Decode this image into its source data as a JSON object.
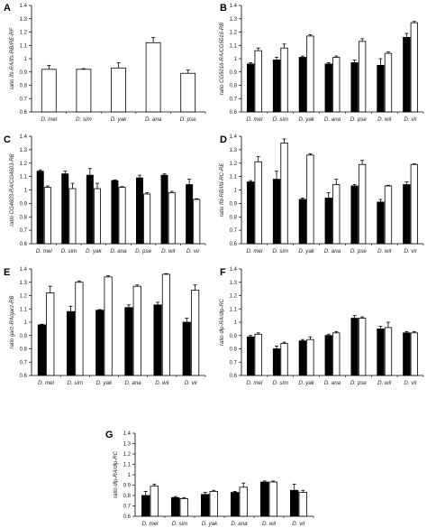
{
  "chart_data": [
    {
      "type": "bar",
      "panel": "A",
      "ylabel": "ratio Ifs-RA/Ifs-RB/RE-RF",
      "ylim": [
        0.6,
        1.4
      ],
      "yticks": [
        "0.6",
        "0.7",
        "0.8",
        "0.9",
        "1",
        "1.1",
        "1.2",
        "1.3",
        "1.4"
      ],
      "categories": [
        "D. mel",
        "D. sim",
        "D. yak",
        "D. ana",
        "D. pse"
      ],
      "series": [
        {
          "fill": "#ffffff",
          "values": [
            0.92,
            0.92,
            0.93,
            1.12,
            0.89
          ],
          "errors": [
            0.03,
            0.005,
            0.04,
            0.04,
            0.025
          ]
        }
      ]
    },
    {
      "type": "bar",
      "panel": "B",
      "ylabel": "ratio CG5016-RA/CG5016-RB",
      "ylim": [
        0.6,
        1.4
      ],
      "yticks": [
        "0.6",
        "0.7",
        "0.8",
        "0.9",
        "1",
        "1.1",
        "1.2",
        "1.3",
        "1.4"
      ],
      "categories": [
        "D. mel",
        "D. sim",
        "D. yak",
        "D. ana",
        "D. pse",
        "D. wil",
        "D. vir"
      ],
      "series": [
        {
          "fill": "#000000",
          "values": [
            0.96,
            0.99,
            1.01,
            0.96,
            0.97,
            0.95,
            1.16
          ],
          "errors": [
            0.01,
            0.02,
            0.01,
            0.01,
            0.02,
            0.05,
            0.03
          ]
        },
        {
          "fill": "#ffffff",
          "values": [
            1.06,
            1.08,
            1.17,
            1.01,
            1.13,
            1.04,
            1.27
          ],
          "errors": [
            0.02,
            0.03,
            0.01,
            0.01,
            0.02,
            0.01,
            0.01
          ]
        }
      ]
    },
    {
      "type": "bar",
      "panel": "C",
      "ylabel": "ratio CG4603-RA/CG4603-RB",
      "ylim": [
        0.6,
        1.4
      ],
      "yticks": [
        "0.6",
        "0.7",
        "0.8",
        "0.9",
        "1",
        "1.1",
        "1.2",
        "1.3",
        "1.4"
      ],
      "categories": [
        "D. mel",
        "D. sim",
        "D. yak",
        "D. ana",
        "D. pse",
        "D. wil",
        "D. vir"
      ],
      "series": [
        {
          "fill": "#000000",
          "values": [
            1.14,
            1.12,
            1.11,
            1.07,
            1.09,
            1.11,
            1.04
          ],
          "errors": [
            0.01,
            0.02,
            0.05,
            0.005,
            0.02,
            0.01,
            0.04
          ]
        },
        {
          "fill": "#ffffff",
          "values": [
            1.02,
            1.01,
            1.01,
            1.02,
            0.97,
            0.98,
            0.93
          ],
          "errors": [
            0.01,
            0.04,
            0.04,
            0.005,
            0.01,
            0.01,
            0.005
          ]
        }
      ]
    },
    {
      "type": "bar",
      "panel": "D",
      "ylabel": "ratio Ifd-RB/Ifd-RC-RE",
      "ylim": [
        0.6,
        1.4
      ],
      "yticks": [
        "0.6",
        "0.7",
        "0.8",
        "0.9",
        "1",
        "1.1",
        "1.2",
        "1.3",
        "1.4"
      ],
      "categories": [
        "D. mel",
        "D. sim",
        "D. yak",
        "D. ana",
        "D. pse",
        "D. wil",
        "D. vir"
      ],
      "series": [
        {
          "fill": "#000000",
          "values": [
            1.06,
            1.08,
            0.93,
            0.94,
            1.03,
            0.91,
            1.04
          ],
          "errors": [
            0.01,
            0.06,
            0.01,
            0.04,
            0.01,
            0.02,
            0.02
          ]
        },
        {
          "fill": "#ffffff",
          "values": [
            1.21,
            1.35,
            1.26,
            1.04,
            1.19,
            1.03,
            1.19
          ],
          "errors": [
            0.04,
            0.03,
            0.01,
            0.04,
            0.03,
            0.005,
            0.005
          ]
        }
      ]
    },
    {
      "type": "bar",
      "panel": "E",
      "ylabel": "ratio garz-RA/garz-RB",
      "ylim": [
        0.6,
        1.4
      ],
      "yticks": [
        "0.6",
        "0.7",
        "0.8",
        "0.9",
        "1",
        "1.1",
        "1.2",
        "1.3",
        "1.4"
      ],
      "categories": [
        "D. mel",
        "D. sim",
        "D. yak",
        "D. ana",
        "D. wil",
        "D. vir"
      ],
      "series": [
        {
          "fill": "#000000",
          "values": [
            0.98,
            1.08,
            1.09,
            1.11,
            1.13,
            1.0
          ],
          "errors": [
            0.005,
            0.04,
            0.005,
            0.02,
            0.02,
            0.03
          ]
        },
        {
          "fill": "#ffffff",
          "values": [
            1.22,
            1.3,
            1.34,
            1.27,
            1.36,
            1.24
          ],
          "errors": [
            0.05,
            0.01,
            0.01,
            0.01,
            0.005,
            0.04
          ]
        }
      ]
    },
    {
      "type": "bar",
      "panel": "F",
      "ylabel": "ratio dlp-RA/dlp-RC",
      "ylim": [
        0.6,
        1.4
      ],
      "yticks": [
        "0.6",
        "0.7",
        "0.8",
        "0.9",
        "1",
        "1.1",
        "1.2",
        "1.3",
        "1.4"
      ],
      "categories": [
        "D. mel",
        "D. sim",
        "D. yak",
        "D. ana",
        "D. pse",
        "D. wil",
        "D. vir"
      ],
      "series": [
        {
          "fill": "#000000",
          "values": [
            0.89,
            0.8,
            0.86,
            0.9,
            1.03,
            0.95,
            0.92
          ],
          "errors": [
            0.01,
            0.02,
            0.01,
            0.01,
            0.02,
            0.02,
            0.01
          ]
        },
        {
          "fill": "#ffffff",
          "values": [
            0.91,
            0.84,
            0.87,
            0.92,
            1.03,
            0.96,
            0.92
          ],
          "errors": [
            0.01,
            0.01,
            0.02,
            0.01,
            0.01,
            0.04,
            0.01
          ]
        }
      ]
    },
    {
      "type": "bar",
      "panel": "G",
      "ylabel": "ratio dlp-RA/dlp-RC",
      "ylim": [
        0.6,
        1.4
      ],
      "yticks": [
        "0.6",
        "0.7",
        "0.8",
        "0.9",
        "1",
        "1.1",
        "1.2",
        "1.3",
        "1.4"
      ],
      "categories": [
        "D. mel",
        "D. sim",
        "D. yak",
        "D. ana",
        "D. wil",
        "D. vir"
      ],
      "series": [
        {
          "fill": "#000000",
          "values": [
            0.8,
            0.78,
            0.81,
            0.83,
            0.93,
            0.85
          ],
          "errors": [
            0.04,
            0.01,
            0.02,
            0.01,
            0.01,
            0.06
          ]
        },
        {
          "fill": "#ffffff",
          "values": [
            0.89,
            0.77,
            0.84,
            0.88,
            0.93,
            0.83
          ],
          "errors": [
            0.02,
            0.01,
            0.01,
            0.04,
            0.01,
            0.02
          ]
        }
      ]
    }
  ]
}
